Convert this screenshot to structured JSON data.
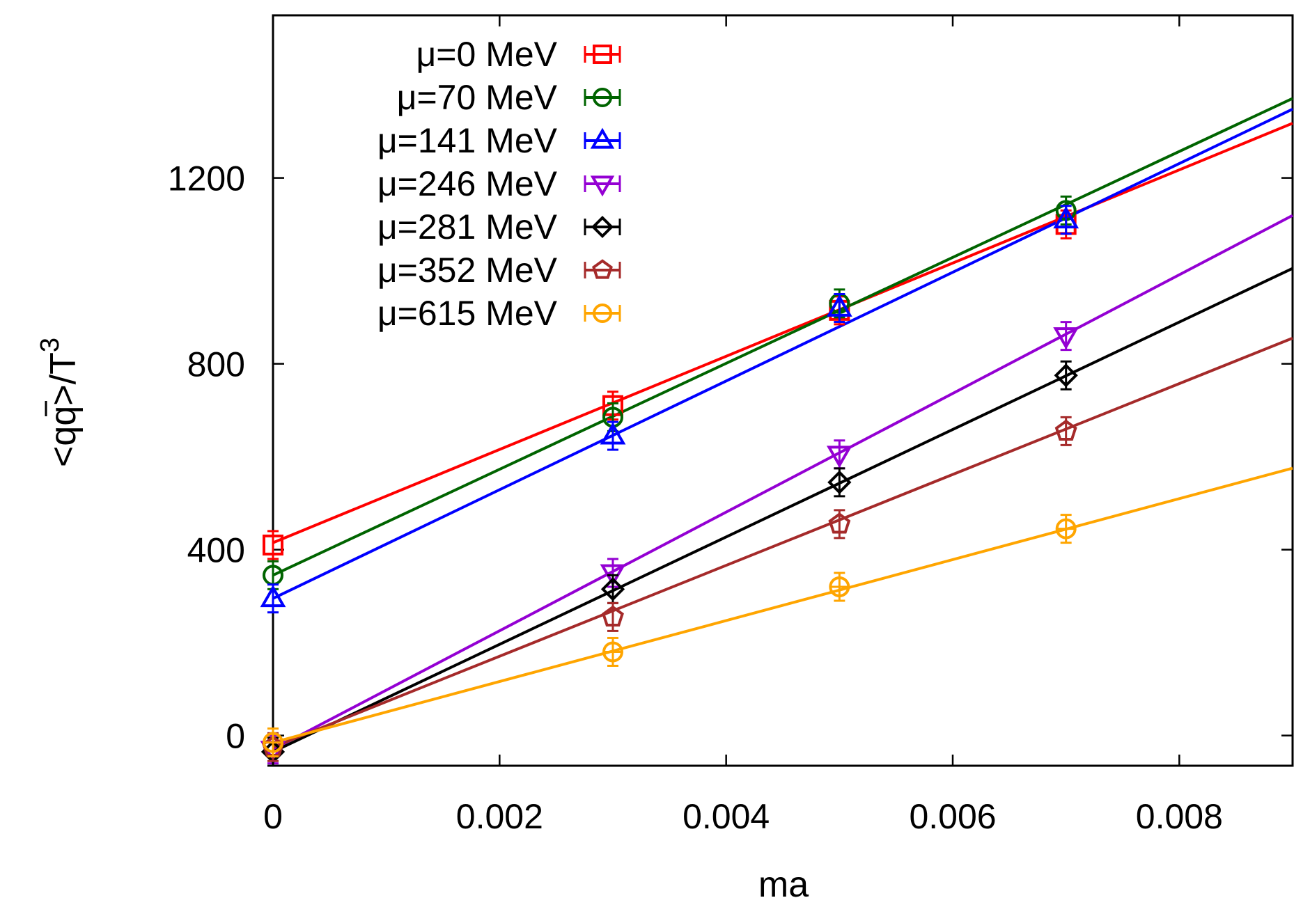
{
  "chart_data": {
    "type": "line",
    "xlabel": "ma",
    "ylabel": "<q̄q>/T³",
    "ylabel_parts": {
      "open": "<",
      "qbar": "q",
      "q": "q",
      "close": ">/T",
      "exp": "3"
    },
    "xlim": [
      0,
      0.009
    ],
    "ylim": [
      -65,
      1550
    ],
    "xticks": [
      0,
      0.002,
      0.004,
      0.006,
      0.008
    ],
    "xtick_labels": [
      "0",
      "0.002",
      "0.004",
      "0.006",
      "0.008"
    ],
    "yticks": [
      0,
      400,
      800,
      1200
    ],
    "ytick_labels": [
      "0",
      "400",
      "800",
      "1200"
    ],
    "legend_position": "top-left",
    "series": [
      {
        "name": "μ=0 MeV",
        "color": "#ff0000",
        "marker": "square",
        "x": [
          0,
          0.003,
          0.005,
          0.007
        ],
        "y": [
          410,
          710,
          915,
          1100
        ],
        "fit": [
          415,
          100.3
        ]
      },
      {
        "name": "μ=70 MeV",
        "color": "#006400",
        "marker": "circle",
        "x": [
          0,
          0.003,
          0.005,
          0.007
        ],
        "y": [
          345,
          685,
          930,
          1130
        ],
        "fit": [
          345,
          114.0
        ]
      },
      {
        "name": "μ=141 MeV",
        "color": "#0000ff",
        "marker": "triangle-up",
        "x": [
          0,
          0.003,
          0.005,
          0.007
        ],
        "y": [
          295,
          645,
          920,
          1110
        ],
        "fit": [
          295,
          117.0
        ]
      },
      {
        "name": "μ=246 MeV",
        "color": "#9400d3",
        "marker": "triangle-down",
        "x": [
          0,
          0.003,
          0.005,
          0.007
        ],
        "y": [
          -30,
          350,
          605,
          860
        ],
        "fit": [
          -30,
          127.7
        ]
      },
      {
        "name": "μ=281 MeV",
        "color": "#000000",
        "marker": "diamond",
        "x": [
          0,
          0.003,
          0.005,
          0.007
        ],
        "y": [
          -35,
          315,
          545,
          775
        ],
        "fit": [
          -35,
          115.6
        ]
      },
      {
        "name": "μ=352 MeV",
        "color": "#a52a2a",
        "marker": "pentagon",
        "x": [
          0,
          0.003,
          0.005,
          0.007
        ],
        "y": [
          -25,
          255,
          455,
          655
        ],
        "fit": [
          -25,
          97.8
        ]
      },
      {
        "name": "μ=615 MeV",
        "color": "#ffa500",
        "marker": "circle-dot",
        "x": [
          0,
          0.003,
          0.005,
          0.007
        ],
        "y": [
          -15,
          180,
          320,
          445
        ],
        "fit": [
          -15,
          65.6
        ]
      }
    ]
  }
}
